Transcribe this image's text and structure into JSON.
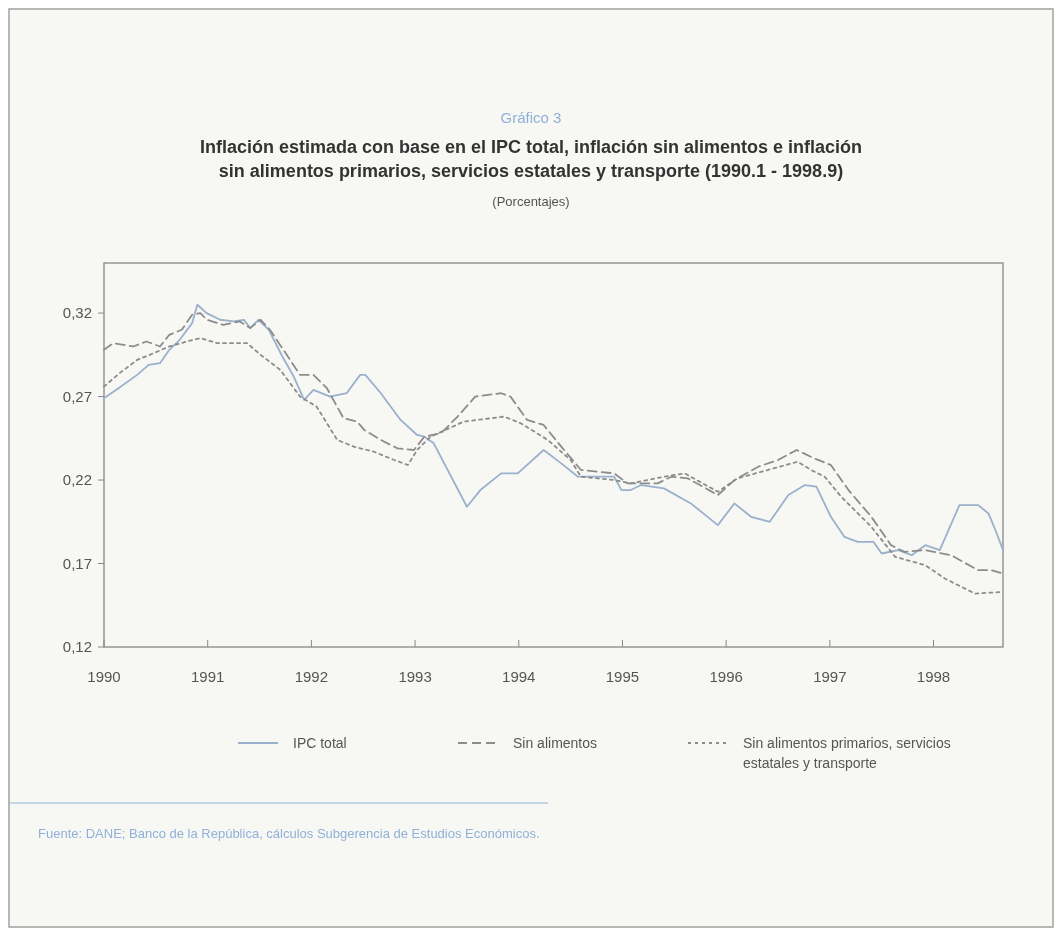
{
  "chart_data": {
    "type": "line",
    "title": "Inflación estimada con base en el IPC total, inflación sin alimentos e inflación sin alimentos primarios, servicios estatales y transporte (1990.1 - 1998.9)",
    "subtitle": "(Porcentajes)",
    "annotations": [
      "Gráfico 3",
      "Fuente: DANE; Banco de la República, cálculos Subgerencia de Estudios Económicos."
    ],
    "xlim": [
      1990,
      1998.67
    ],
    "xticks": [
      1990,
      1991,
      1992,
      1993,
      1994,
      1995,
      1996,
      1997,
      1998
    ],
    "ylim": [
      0.12,
      0.35
    ],
    "yticks": [
      {
        "value": 0.12,
        "label": "0,12"
      },
      {
        "value": 0.17,
        "label": "0,17"
      },
      {
        "value": 0.22,
        "label": "0,22"
      },
      {
        "value": 0.27,
        "label": "0,27"
      },
      {
        "value": 0.32,
        "label": "0,32"
      }
    ],
    "legend": "bottom",
    "series": [
      {
        "name": "IPC total",
        "color": "#9ab0cc",
        "line_style": "solid",
        "x": [
          1990.0,
          1990.14,
          1990.32,
          1990.43,
          1990.54,
          1990.63,
          1990.73,
          1990.85,
          1990.9,
          1990.99,
          1991.12,
          1991.25,
          1991.35,
          1991.41,
          1991.49,
          1991.59,
          1991.72,
          1991.83,
          1991.93,
          1992.02,
          1992.18,
          1992.34,
          1992.47,
          1992.52,
          1992.67,
          1992.86,
          1993.02,
          1993.09,
          1993.18,
          1993.5,
          1993.63,
          1993.83,
          1993.99,
          1994.24,
          1994.41,
          1994.57,
          1994.92,
          1994.99,
          1995.08,
          1995.18,
          1995.4,
          1995.66,
          1995.92,
          1996.08,
          1996.24,
          1996.42,
          1996.6,
          1996.76,
          1996.87,
          1997.01,
          1997.14,
          1997.27,
          1997.42,
          1997.5,
          1997.66,
          1997.79,
          1997.92,
          1998.06,
          1998.25,
          1998.43,
          1998.53,
          1998.61,
          1998.67
        ],
        "values": [
          0.269,
          0.275,
          0.283,
          0.289,
          0.29,
          0.298,
          0.304,
          0.314,
          0.325,
          0.32,
          0.316,
          0.315,
          0.316,
          0.311,
          0.316,
          0.31,
          0.294,
          0.282,
          0.268,
          0.274,
          0.27,
          0.272,
          0.283,
          0.283,
          0.272,
          0.256,
          0.247,
          0.246,
          0.242,
          0.204,
          0.214,
          0.224,
          0.224,
          0.238,
          0.23,
          0.222,
          0.222,
          0.214,
          0.214,
          0.217,
          0.215,
          0.206,
          0.193,
          0.206,
          0.198,
          0.195,
          0.211,
          0.217,
          0.216,
          0.198,
          0.186,
          0.183,
          0.183,
          0.176,
          0.178,
          0.175,
          0.181,
          0.178,
          0.205,
          0.205,
          0.2,
          0.188,
          0.178
        ]
      },
      {
        "name": "Sin alimentos",
        "color": "#8c8c8c",
        "line_style": "dashed",
        "x": [
          1990.0,
          1990.09,
          1990.19,
          1990.28,
          1990.41,
          1990.54,
          1990.63,
          1990.75,
          1990.85,
          1990.93,
          1990.99,
          1991.15,
          1991.31,
          1991.41,
          1991.51,
          1991.6,
          1991.73,
          1991.89,
          1992.02,
          1992.15,
          1992.31,
          1992.44,
          1992.51,
          1992.67,
          1992.83,
          1992.99,
          1993.09,
          1993.25,
          1993.41,
          1993.58,
          1993.83,
          1993.92,
          1994.08,
          1994.24,
          1994.41,
          1994.6,
          1994.92,
          1995.05,
          1995.34,
          1995.47,
          1995.63,
          1995.92,
          1996.08,
          1996.31,
          1996.5,
          1996.68,
          1996.85,
          1997.01,
          1997.18,
          1997.4,
          1997.59,
          1997.72,
          1997.92,
          1998.17,
          1998.43,
          1998.56,
          1998.67
        ],
        "values": [
          0.298,
          0.302,
          0.301,
          0.3,
          0.303,
          0.3,
          0.307,
          0.31,
          0.319,
          0.32,
          0.316,
          0.313,
          0.315,
          0.311,
          0.316,
          0.31,
          0.298,
          0.283,
          0.283,
          0.275,
          0.257,
          0.255,
          0.25,
          0.244,
          0.239,
          0.238,
          0.246,
          0.248,
          0.258,
          0.27,
          0.272,
          0.27,
          0.256,
          0.253,
          0.24,
          0.226,
          0.224,
          0.218,
          0.218,
          0.222,
          0.221,
          0.211,
          0.22,
          0.228,
          0.232,
          0.238,
          0.233,
          0.229,
          0.214,
          0.198,
          0.181,
          0.177,
          0.178,
          0.175,
          0.166,
          0.166,
          0.164
        ]
      },
      {
        "name": "Sin alimentos primarios, servicios estatales y transporte",
        "color": "#8c8c8c",
        "line_style": "dotted",
        "x": [
          1990.0,
          1990.15,
          1990.32,
          1990.48,
          1990.63,
          1990.8,
          1990.93,
          1991.09,
          1991.38,
          1991.51,
          1991.7,
          1991.89,
          1992.05,
          1992.25,
          1992.41,
          1992.6,
          1992.8,
          1992.93,
          1993.02,
          1993.15,
          1993.47,
          1993.86,
          1994.02,
          1994.28,
          1994.5,
          1994.6,
          1994.92,
          1995.08,
          1995.4,
          1995.6,
          1995.92,
          1996.11,
          1996.4,
          1996.69,
          1996.82,
          1996.95,
          1997.11,
          1997.4,
          1997.63,
          1997.92,
          1998.11,
          1998.4,
          1998.67
        ],
        "values": [
          0.276,
          0.284,
          0.292,
          0.296,
          0.3,
          0.303,
          0.305,
          0.302,
          0.302,
          0.295,
          0.286,
          0.27,
          0.264,
          0.244,
          0.24,
          0.237,
          0.232,
          0.229,
          0.238,
          0.246,
          0.255,
          0.258,
          0.254,
          0.244,
          0.232,
          0.222,
          0.22,
          0.218,
          0.222,
          0.224,
          0.213,
          0.221,
          0.226,
          0.231,
          0.226,
          0.222,
          0.21,
          0.192,
          0.174,
          0.169,
          0.161,
          0.152,
          0.153
        ]
      }
    ]
  }
}
